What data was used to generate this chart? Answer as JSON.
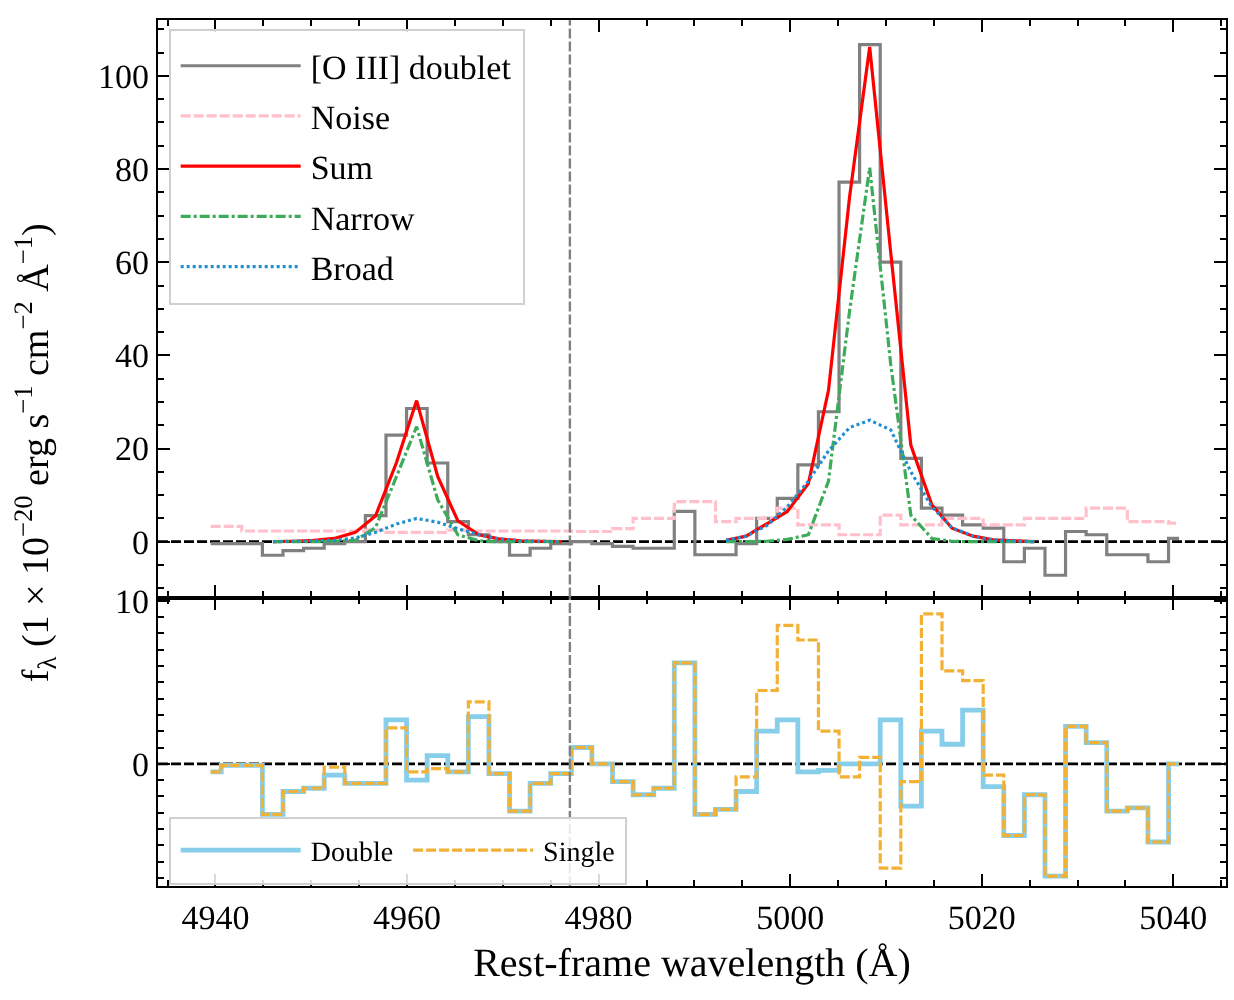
{
  "chart_data": [
    {
      "type": "step",
      "ylabel": "f$_{λ}$ (1 × 10$^{−20}$ erg s$^{−1}$ cm$^{−2}$ Å$^{−1}$)",
      "x": [
        4939.5,
        4941.7,
        4943.8,
        4946.0,
        4948.1,
        4950.3,
        4952.4,
        4954.6,
        4956.7,
        4958.9,
        4961.0,
        4963.2,
        4965.3,
        4967.5,
        4969.6,
        4971.8,
        4973.9,
        4976.1,
        4978.2,
        4980.4,
        4982.5,
        4984.7,
        4986.8,
        4989.0,
        4991.1,
        4993.3,
        4995.4,
        4997.6,
        4999.7,
        5001.9,
        5004.0,
        5006.2,
        5008.3,
        5010.5,
        5012.6,
        5014.8,
        5016.9,
        5019.1,
        5021.2,
        5023.4,
        5025.5,
        5027.7,
        5029.8,
        5032.0,
        5034.1,
        5036.3,
        5038.4,
        5040.6
      ],
      "series": [
        {
          "name": "[O III] doublet",
          "color": "#808080",
          "line_style": "solid",
          "values": [
            -0.4,
            -0.4,
            -0.4,
            -2.9,
            -1.9,
            -1.4,
            -0.4,
            0.0,
            5.6,
            22.9,
            28.6,
            16.9,
            4.3,
            1.5,
            0.0,
            -2.9,
            -1.4,
            -0.4,
            0.0,
            -0.4,
            -1.0,
            -1.4,
            -1.4,
            6.5,
            -2.8,
            -2.8,
            -0.4,
            5.0,
            9.3,
            16.5,
            27.9,
            77.2,
            106.7,
            60.0,
            17.9,
            7.2,
            5.7,
            3.6,
            2.9,
            -4.3,
            -1.4,
            -7.2,
            2.2,
            1.5,
            -2.8,
            -2.8,
            -4.3,
            0.7
          ]
        },
        {
          "name": "Noise",
          "color": "#ffc0cb",
          "line_style": "dashed",
          "values": [
            3.3,
            3.3,
            2.3,
            2.3,
            2.3,
            2.3,
            2.3,
            2.3,
            2.5,
            2.0,
            2.0,
            2.0,
            2.5,
            2.3,
            2.3,
            2.3,
            2.3,
            2.3,
            2.2,
            2.2,
            2.8,
            5.0,
            5.0,
            8.6,
            8.6,
            4.3,
            5.0,
            5.0,
            7.2,
            3.6,
            3.6,
            1.5,
            1.5,
            5.7,
            3.6,
            3.6,
            5.0,
            5.0,
            3.6,
            3.6,
            5.0,
            5.0,
            5.0,
            7.2,
            7.2,
            4.3,
            4.3,
            4.0
          ]
        },
        {
          "name": "Sum",
          "type": "line",
          "color": "#ff0000",
          "line_style": "solid",
          "values": [
            null,
            null,
            null,
            0.0,
            0.1,
            0.3,
            0.7,
            2.0,
            5.5,
            17.0,
            30.3,
            14.0,
            4.5,
            1.5,
            0.6,
            0.2,
            0.1,
            0.0,
            null,
            null,
            null,
            null,
            null,
            null,
            null,
            0.3,
            1.2,
            3.9,
            6.5,
            12.5,
            32.5,
            74.0,
            106.2,
            62.0,
            20.7,
            7.9,
            2.9,
            1.2,
            0.4,
            0.2,
            0.0,
            null,
            null,
            null,
            null,
            null,
            null,
            null
          ]
        },
        {
          "name": "Narrow",
          "type": "line",
          "color": "#3cab5a",
          "line_style": "dashdot",
          "values": [
            null,
            null,
            null,
            0.0,
            0.0,
            0.0,
            0.1,
            0.3,
            3.0,
            14.0,
            24.7,
            9.0,
            1.5,
            0.2,
            0.0,
            0.0,
            0.0,
            0.0,
            null,
            null,
            null,
            null,
            null,
            null,
            null,
            0.0,
            0.0,
            0.1,
            0.5,
            1.5,
            13.0,
            49.5,
            80.3,
            38.0,
            5.7,
            0.7,
            0.1,
            0.0,
            0.0,
            0.0,
            0.0,
            null,
            null,
            null,
            null,
            null,
            null,
            null
          ]
        },
        {
          "name": "Broad",
          "type": "line",
          "color": "#1f8fcf",
          "line_style": "dotted",
          "values": [
            null,
            null,
            null,
            0.0,
            0.1,
            0.2,
            0.3,
            0.8,
            2.0,
            3.8,
            5.0,
            4.2,
            2.8,
            1.5,
            0.6,
            0.2,
            0.1,
            0.0,
            null,
            null,
            null,
            null,
            null,
            null,
            null,
            0.3,
            1.2,
            3.5,
            7.5,
            13.0,
            19.5,
            24.5,
            26.1,
            24.0,
            15.0,
            7.5,
            3.0,
            1.2,
            0.4,
            0.2,
            0.0,
            null,
            null,
            null,
            null,
            null,
            null,
            null
          ]
        }
      ],
      "xlim": [
        4934,
        5045.5
      ],
      "xticks": [
        4940,
        4960,
        4980,
        5000,
        5020,
        5040
      ],
      "ylim": [
        -12,
        112
      ],
      "yticks": [
        0,
        20,
        40,
        60,
        80,
        100
      ],
      "tick_labels": "y",
      "legend": "top left",
      "ref_lines": [
        {
          "axis": "y",
          "value": 0,
          "color": "#000000",
          "line_style": "dashed"
        },
        {
          "axis": "x",
          "value": 4977,
          "color": "#808080",
          "line_style": "dashed"
        }
      ]
    },
    {
      "type": "step",
      "xlabel": "Rest-frame wavelength (Å)",
      "x": [
        4939.5,
        4941.7,
        4943.8,
        4946.0,
        4948.1,
        4950.3,
        4952.4,
        4954.6,
        4956.7,
        4958.9,
        4961.0,
        4963.2,
        4965.3,
        4967.5,
        4969.6,
        4971.8,
        4973.9,
        4976.1,
        4978.2,
        4980.4,
        4982.5,
        4984.7,
        4986.8,
        4989.0,
        4991.1,
        4993.3,
        4995.4,
        4997.6,
        4999.7,
        5001.9,
        5004.0,
        5006.2,
        5008.3,
        5010.5,
        5012.6,
        5014.8,
        5016.9,
        5019.1,
        5021.2,
        5023.4,
        5025.5,
        5027.7,
        5029.8,
        5032.0,
        5034.1,
        5036.3,
        5038.4,
        5040.6
      ],
      "series": [
        {
          "name": "Double",
          "color": "#87ceeb",
          "line_style": "solid",
          "values": [
            -0.5,
            -0.1,
            -0.1,
            -3.1,
            -1.7,
            -1.5,
            -0.7,
            -1.2,
            -1.2,
            2.7,
            -1.0,
            0.5,
            -0.5,
            2.9,
            -0.6,
            -2.9,
            -1.2,
            -0.6,
            1.0,
            0.0,
            -1.1,
            -1.9,
            -1.5,
            6.2,
            -3.1,
            -2.8,
            -1.7,
            2.0,
            2.7,
            -0.5,
            -0.4,
            0.0,
            0.0,
            2.7,
            -2.6,
            2.0,
            1.2,
            3.3,
            -1.4,
            -4.4,
            -1.9,
            -6.9,
            2.3,
            1.3,
            -2.9,
            -2.7,
            -4.8,
            0.0
          ]
        },
        {
          "name": "Single",
          "color": "#f2b134",
          "line_style": "dashed",
          "values": [
            -0.5,
            -0.1,
            -0.1,
            -3.1,
            -1.7,
            -1.5,
            -0.2,
            -1.2,
            -1.2,
            2.2,
            -0.5,
            -0.3,
            -0.5,
            3.8,
            -0.6,
            -2.9,
            -1.2,
            -0.6,
            1.0,
            0.0,
            -1.1,
            -1.9,
            -1.5,
            6.2,
            -3.1,
            -2.8,
            -0.8,
            4.5,
            8.5,
            7.6,
            2.0,
            -0.8,
            0.4,
            -6.4,
            -1.1,
            9.2,
            5.7,
            5.1,
            -0.7,
            -4.4,
            -1.9,
            -6.9,
            2.3,
            1.3,
            -2.9,
            -2.7,
            -4.8,
            0.0
          ]
        }
      ],
      "xlim": [
        4934,
        5045.5
      ],
      "xticks": [
        4940,
        4960,
        4980,
        5000,
        5020,
        5040
      ],
      "ylim": [
        -7.5,
        10.2
      ],
      "yticks": [
        0,
        10
      ],
      "legend": "bottom left",
      "ref_lines": [
        {
          "axis": "y",
          "value": 0,
          "color": "#000000",
          "line_style": "dashed"
        },
        {
          "axis": "x",
          "value": 4977,
          "color": "#808080",
          "line_style": "dashed"
        }
      ]
    }
  ]
}
